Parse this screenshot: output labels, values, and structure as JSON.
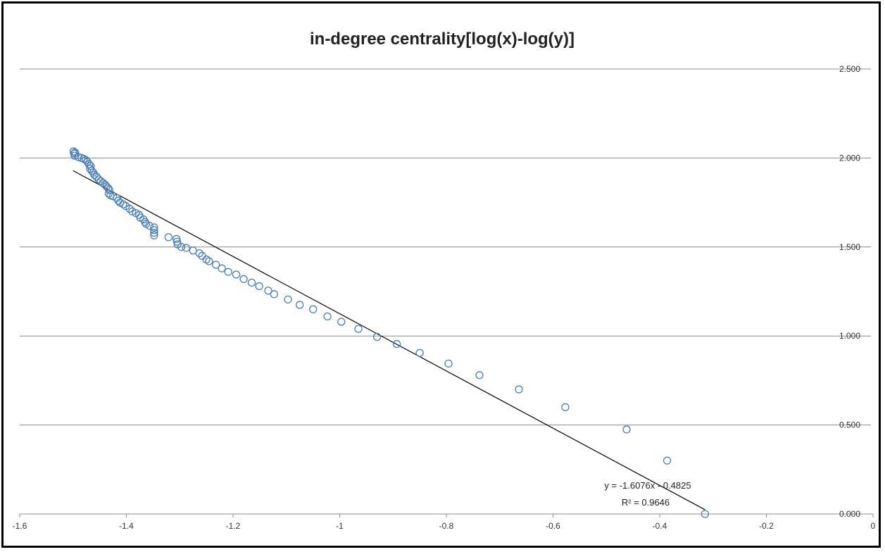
{
  "chart_data": {
    "type": "scatter",
    "title": "in-degree centrality[log(x)-log(y)]",
    "xlabel": "",
    "ylabel": "",
    "xlim": [
      -1.6,
      0
    ],
    "ylim": [
      0,
      2.5
    ],
    "x_ticks": [
      "-1.6",
      "-1.4",
      "-1.2",
      "-1",
      "-0.8",
      "-0.6",
      "-0.4",
      "-0.2",
      "0"
    ],
    "y_ticks": [
      "0.000",
      "0.500",
      "1.000",
      "1.500",
      "2.000",
      "2.500"
    ],
    "grid": "horizontal",
    "legend": "none",
    "marker_color": "#4a7ebb",
    "trendline_color": "#000000",
    "trendline": {
      "slope": -1.6076,
      "intercept": -0.4825,
      "x_range": [
        -1.5,
        -0.315
      ],
      "equation_text": "y = -1.6076x - 0.4825",
      "r2_text": "R² = 0.9646"
    },
    "series": [
      {
        "points": [
          [
            -1.499,
            2.037
          ],
          [
            -1.498,
            2.025
          ],
          [
            -1.497,
            2.013
          ],
          [
            -1.496,
            2.03
          ],
          [
            -1.49,
            2.005
          ],
          [
            -1.484,
            2.0
          ],
          [
            -1.48,
            1.995
          ],
          [
            -1.476,
            1.988
          ],
          [
            -1.473,
            1.978
          ],
          [
            -1.47,
            1.965
          ],
          [
            -1.467,
            1.955
          ],
          [
            -1.468,
            1.94
          ],
          [
            -1.465,
            1.928
          ],
          [
            -1.462,
            1.918
          ],
          [
            -1.46,
            1.905
          ],
          [
            -1.456,
            1.895
          ],
          [
            -1.452,
            1.88
          ],
          [
            -1.448,
            1.87
          ],
          [
            -1.444,
            1.86
          ],
          [
            -1.44,
            1.85
          ],
          [
            -1.437,
            1.84
          ],
          [
            -1.434,
            1.83
          ],
          [
            -1.432,
            1.82
          ],
          [
            -1.433,
            1.8
          ],
          [
            -1.43,
            1.79
          ],
          [
            -1.425,
            1.785
          ],
          [
            -1.418,
            1.775
          ],
          [
            -1.415,
            1.76
          ],
          [
            -1.412,
            1.75
          ],
          [
            -1.406,
            1.74
          ],
          [
            -1.401,
            1.73
          ],
          [
            -1.394,
            1.715
          ],
          [
            -1.389,
            1.7
          ],
          [
            -1.382,
            1.69
          ],
          [
            -1.376,
            1.68
          ],
          [
            -1.374,
            1.665
          ],
          [
            -1.368,
            1.655
          ],
          [
            -1.365,
            1.64
          ],
          [
            -1.363,
            1.63
          ],
          [
            -1.357,
            1.62
          ],
          [
            -1.348,
            1.61
          ],
          [
            -1.348,
            1.595
          ],
          [
            -1.348,
            1.58
          ],
          [
            -1.348,
            1.565
          ],
          [
            -1.321,
            1.555
          ],
          [
            -1.306,
            1.545
          ],
          [
            -1.305,
            1.53
          ],
          [
            -1.304,
            1.515
          ],
          [
            -1.297,
            1.5
          ],
          [
            -1.288,
            1.495
          ],
          [
            -1.275,
            1.48
          ],
          [
            -1.263,
            1.465
          ],
          [
            -1.258,
            1.45
          ],
          [
            -1.25,
            1.43
          ],
          [
            -1.245,
            1.42
          ],
          [
            -1.232,
            1.4
          ],
          [
            -1.221,
            1.38
          ],
          [
            -1.209,
            1.36
          ],
          [
            -1.194,
            1.345
          ],
          [
            -1.18,
            1.32
          ],
          [
            -1.165,
            1.3
          ],
          [
            -1.151,
            1.28
          ],
          [
            -1.134,
            1.255
          ],
          [
            -1.123,
            1.235
          ],
          [
            -1.097,
            1.205
          ],
          [
            -1.075,
            1.175
          ],
          [
            -1.05,
            1.15
          ],
          [
            -1.023,
            1.11
          ],
          [
            -0.997,
            1.08
          ],
          [
            -0.965,
            1.04
          ],
          [
            -0.93,
            0.995
          ],
          [
            -0.893,
            0.955
          ],
          [
            -0.85,
            0.905
          ],
          [
            -0.796,
            0.845
          ],
          [
            -0.738,
            0.78
          ],
          [
            -0.664,
            0.7
          ],
          [
            -0.577,
            0.6
          ],
          [
            -0.462,
            0.475
          ],
          [
            -0.386,
            0.3
          ],
          [
            -0.315,
            0.0
          ]
        ]
      }
    ]
  }
}
